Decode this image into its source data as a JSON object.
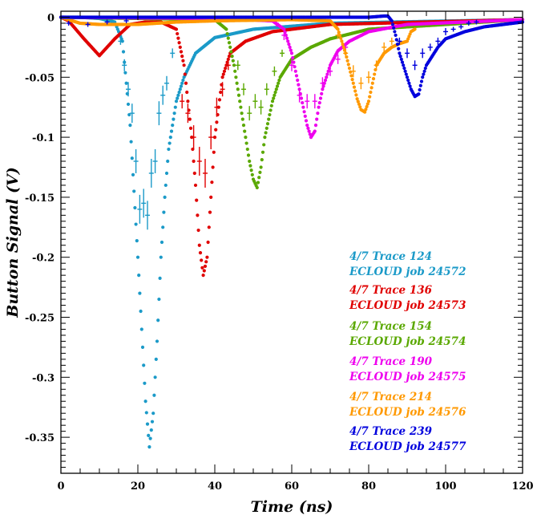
{
  "chart_data": {
    "type": "scatter",
    "title": "",
    "xlabel": "Time (ns)",
    "ylabel": "Button Signal (V)",
    "xlim": [
      0,
      120
    ],
    "ylim": [
      -0.38,
      0.005
    ],
    "x_ticks": [
      "0",
      "20",
      "40",
      "60",
      "80",
      "100",
      "120"
    ],
    "y_ticks": [
      "0",
      "-0.05",
      "-0.1",
      "-0.15",
      "-0.2",
      "-0.25",
      "-0.3",
      "-0.35"
    ],
    "grid": false,
    "legend_position": "bottom-right",
    "series": [
      {
        "color": "#1b9ac8",
        "legend_lines": [
          "4/7 Trace 124",
          "ECLOUD job 24572"
        ],
        "sim": {
          "x": [
            0,
            5,
            10,
            14,
            16,
            18,
            20,
            21,
            22,
            23,
            24,
            25,
            26,
            27,
            28,
            30,
            32,
            35,
            40,
            50,
            70,
            120
          ],
          "y": [
            0,
            0,
            -0.001,
            -0.004,
            -0.02,
            -0.09,
            -0.2,
            -0.26,
            -0.32,
            -0.358,
            -0.33,
            -0.27,
            -0.2,
            -0.15,
            -0.11,
            -0.07,
            -0.05,
            -0.03,
            -0.017,
            -0.01,
            -0.005,
            -0.002
          ]
        },
        "meas": {
          "x": [
            15.5,
            16.5,
            17.5,
            18.5,
            19.5,
            20.5,
            21.5,
            22.5,
            23.5,
            24.5,
            25.5,
            26.5,
            27.5,
            29
          ],
          "y": [
            -0.02,
            -0.04,
            -0.06,
            -0.08,
            -0.12,
            -0.16,
            -0.155,
            -0.165,
            -0.13,
            -0.12,
            -0.08,
            -0.065,
            -0.055,
            -0.03
          ],
          "err": [
            0.003,
            0.005,
            0.006,
            0.008,
            0.01,
            0.012,
            0.012,
            0.012,
            0.012,
            0.01,
            0.01,
            0.008,
            0.006,
            0.004
          ]
        }
      },
      {
        "color": "#e00000",
        "legend_lines": [
          "4/7 Trace 136",
          "ECLOUD job 24573"
        ],
        "sim": {
          "x": [
            0,
            2,
            6,
            10,
            14,
            18,
            22,
            26,
            30,
            32,
            34,
            35,
            36,
            37,
            38,
            39,
            40,
            42,
            44,
            48,
            55,
            70,
            120
          ],
          "y": [
            0,
            -0.003,
            -0.018,
            -0.032,
            -0.018,
            -0.006,
            -0.004,
            -0.004,
            -0.01,
            -0.04,
            -0.1,
            -0.14,
            -0.19,
            -0.215,
            -0.2,
            -0.15,
            -0.1,
            -0.05,
            -0.03,
            -0.02,
            -0.012,
            -0.006,
            -0.002
          ]
        },
        "meas": {
          "x": [
            31.5,
            33,
            34.5,
            36,
            37.5,
            39,
            40.5,
            42,
            43.5
          ],
          "y": [
            -0.07,
            -0.08,
            -0.1,
            -0.12,
            -0.13,
            -0.1,
            -0.075,
            -0.06,
            -0.04
          ],
          "err": [
            0.006,
            0.008,
            0.01,
            0.012,
            0.012,
            0.01,
            0.008,
            0.006,
            0.004
          ]
        }
      },
      {
        "color": "#5aa800",
        "legend_lines": [
          "4/7 Trace 154",
          "ECLOUD job 24574"
        ],
        "sim": {
          "x": [
            0,
            20,
            40,
            43,
            45,
            47,
            49,
            50,
            51,
            52,
            53,
            55,
            57,
            60,
            65,
            70,
            80,
            120
          ],
          "y": [
            0,
            -0.001,
            -0.002,
            -0.01,
            -0.04,
            -0.08,
            -0.12,
            -0.135,
            -0.142,
            -0.125,
            -0.1,
            -0.07,
            -0.05,
            -0.035,
            -0.025,
            -0.018,
            -0.01,
            -0.002
          ]
        },
        "meas": {
          "x": [
            46,
            47.5,
            49,
            50.5,
            52,
            53.5,
            55.5,
            57.5
          ],
          "y": [
            -0.04,
            -0.06,
            -0.08,
            -0.07,
            -0.075,
            -0.06,
            -0.045,
            -0.03
          ],
          "err": [
            0.004,
            0.005,
            0.006,
            0.006,
            0.006,
            0.005,
            0.004,
            0.003
          ]
        }
      },
      {
        "color": "#ee00ee",
        "legend_lines": [
          "4/7 Trace 190",
          "ECLOUD job 24575"
        ],
        "sim": {
          "x": [
            0,
            40,
            55,
            58,
            60,
            62,
            64,
            65,
            66,
            67,
            68,
            70,
            72,
            75,
            80,
            90,
            120
          ],
          "y": [
            0,
            -0.001,
            -0.003,
            -0.01,
            -0.03,
            -0.06,
            -0.09,
            -0.1,
            -0.095,
            -0.075,
            -0.06,
            -0.04,
            -0.028,
            -0.02,
            -0.012,
            -0.006,
            -0.002
          ]
        },
        "meas": {
          "x": [
            56,
            58,
            60,
            62,
            64,
            66,
            68,
            70,
            72,
            74
          ],
          "y": [
            -0.005,
            -0.015,
            -0.04,
            -0.065,
            -0.07,
            -0.07,
            -0.055,
            -0.045,
            -0.035,
            -0.025
          ],
          "err": [
            0.003,
            0.004,
            0.005,
            0.006,
            0.006,
            0.006,
            0.005,
            0.004,
            0.004,
            0.003
          ]
        }
      },
      {
        "color": "#ff9900",
        "legend_lines": [
          "4/7 Trace 214",
          "ECLOUD job 24576"
        ],
        "sim": {
          "x": [
            0,
            2,
            5,
            10,
            20,
            30,
            40,
            60,
            70,
            72,
            74,
            76,
            77,
            78,
            79,
            80,
            81,
            82,
            84,
            86,
            88,
            90,
            91,
            92
          ],
          "y": [
            0,
            -0.002,
            -0.005,
            -0.006,
            -0.006,
            -0.004,
            -0.003,
            -0.002,
            -0.003,
            -0.01,
            -0.03,
            -0.055,
            -0.068,
            -0.077,
            -0.079,
            -0.07,
            -0.055,
            -0.04,
            -0.03,
            -0.025,
            -0.022,
            -0.02,
            -0.012,
            -0.01
          ]
        },
        "meas": {
          "x": [
            72,
            74,
            76,
            78,
            80,
            82,
            84,
            86
          ],
          "y": [
            -0.015,
            -0.03,
            -0.045,
            -0.055,
            -0.05,
            -0.04,
            -0.025,
            -0.02
          ],
          "err": [
            0.003,
            0.004,
            0.005,
            0.005,
            0.005,
            0.004,
            0.004,
            0.003
          ]
        }
      },
      {
        "color": "#0000dd",
        "legend_lines": [
          "4/7 Trace 239",
          "ECLOUD job 24577"
        ],
        "sim": {
          "x": [
            0,
            20,
            40,
            60,
            80,
            84,
            85,
            86,
            87,
            88,
            90,
            91,
            92,
            93,
            94,
            95,
            96,
            98,
            100,
            105,
            110,
            115,
            120
          ],
          "y": [
            0,
            0,
            0,
            0,
            0,
            0.001,
            0.001,
            -0.003,
            -0.015,
            -0.03,
            -0.05,
            -0.06,
            -0.066,
            -0.064,
            -0.05,
            -0.04,
            -0.035,
            -0.025,
            -0.018,
            -0.012,
            -0.008,
            -0.006,
            -0.004
          ]
        },
        "meas": {
          "x": [
            2,
            7,
            12,
            17,
            88,
            90,
            92,
            94,
            96,
            98,
            100,
            102,
            104,
            106,
            108
          ],
          "y": [
            -0.005,
            -0.006,
            -0.004,
            -0.003,
            -0.02,
            -0.03,
            -0.04,
            -0.03,
            -0.025,
            -0.02,
            -0.012,
            -0.01,
            -0.008,
            -0.005,
            -0.004
          ],
          "err": [
            0.002,
            0.002,
            0.002,
            0.002,
            0.003,
            0.004,
            0.004,
            0.004,
            0.003,
            0.003,
            0.003,
            0.002,
            0.002,
            0.002,
            0.002
          ]
        }
      }
    ]
  }
}
